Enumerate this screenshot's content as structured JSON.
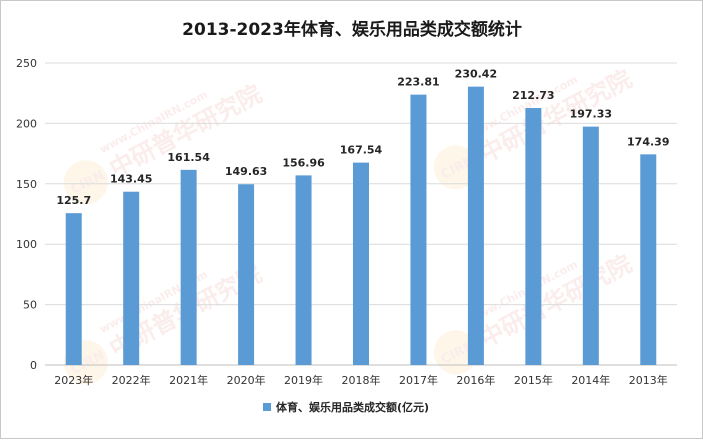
{
  "chart_data": {
    "type": "bar",
    "title": "2013-2023年体育、娱乐用品类成交额统计",
    "categories": [
      "2023年",
      "2022年",
      "2021年",
      "2020年",
      "2019年",
      "2018年",
      "2017年",
      "2016年",
      "2015年",
      "2014年",
      "2013年"
    ],
    "series": [
      {
        "name": "体育、娱乐用品类成交额(亿元)",
        "values": [
          125.7,
          143.45,
          161.54,
          149.63,
          156.96,
          167.54,
          223.81,
          230.42,
          212.73,
          197.33,
          174.39
        ],
        "labels": [
          "125.7",
          "143.45",
          "161.54",
          "149.63",
          "156.96",
          "167.54",
          "223.81",
          "230.42",
          "212.73",
          "197.33",
          "174.39"
        ]
      }
    ],
    "ylim": [
      0,
      250
    ],
    "yticks": [
      "0",
      "50",
      "100",
      "150",
      "200",
      "250"
    ],
    "grid": true,
    "legend_position": "bottom",
    "bar_color": "#5b9bd5"
  },
  "watermark": {
    "logo": "CIRN",
    "text_cn": "中研普华研究院",
    "text_url": "www.ChinaIRN.com"
  }
}
